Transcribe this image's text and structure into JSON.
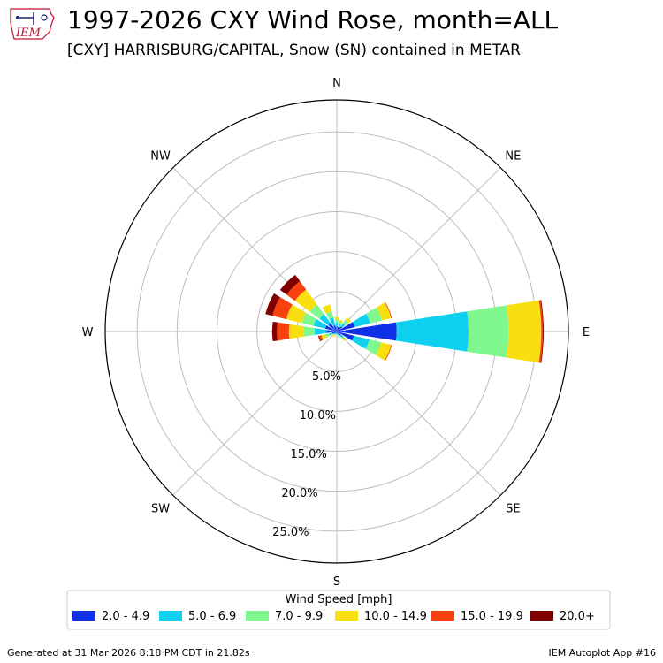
{
  "header": {
    "title": "1997-2026 CXY Wind Rose, month=ALL",
    "subtitle": "[CXY] HARRISBURG/CAPITAL, Snow (SN) contained in METAR",
    "logo_text": "IEM"
  },
  "footer": {
    "generated": "Generated at 31 Mar 2026 8:18 PM CDT in 21.82s",
    "app": "IEM Autoplot App #16"
  },
  "chart_data": {
    "type": "wind-rose",
    "directions": [
      "N",
      "NNE",
      "NE",
      "ENE",
      "E",
      "ESE",
      "SE",
      "SSE",
      "S",
      "SSW",
      "SW",
      "WSW",
      "W",
      "WNW",
      "NW",
      "NNW"
    ],
    "direction_angles": [
      0,
      22.5,
      45,
      67.5,
      90,
      112.5,
      135,
      157.5,
      180,
      202.5,
      225,
      247.5,
      270,
      292.5,
      315,
      337.5
    ],
    "compass_labels": [
      {
        "label": "N",
        "angle": 0
      },
      {
        "label": "NE",
        "angle": 45
      },
      {
        "label": "E",
        "angle": 90
      },
      {
        "label": "SE",
        "angle": 135
      },
      {
        "label": "S",
        "angle": 180
      },
      {
        "label": "SW",
        "angle": 225
      },
      {
        "label": "W",
        "angle": 270
      },
      {
        "label": "NW",
        "angle": 315
      }
    ],
    "radial_ticks": [
      5,
      10,
      15,
      20,
      25
    ],
    "radial_tick_labels": [
      "5.0%",
      "10.0%",
      "15.0%",
      "20.0%",
      "25.0%"
    ],
    "rmax": 29,
    "legend": {
      "title": "Wind Speed [mph]",
      "placement": "bottom",
      "items": [
        {
          "label": "2.0 - 4.9",
          "color": "#1030e8"
        },
        {
          "label": "5.0 - 6.9",
          "color": "#10d0f0"
        },
        {
          "label": "7.0 - 9.9",
          "color": "#80f890"
        },
        {
          "label": "10.0 - 14.9",
          "color": "#f8e010"
        },
        {
          "label": "15.0 - 19.9",
          "color": "#f84010"
        },
        {
          "label": "20.0+",
          "color": "#800000"
        }
      ]
    },
    "series_cumulative": [
      {
        "dir": "N",
        "values": [
          0.6,
          1.1,
          1.5,
          1.8,
          1.8,
          1.8
        ]
      },
      {
        "dir": "NNE",
        "values": [
          0.6,
          1.0,
          1.3,
          1.5,
          1.5,
          1.5
        ]
      },
      {
        "dir": "NE",
        "values": [
          0.8,
          1.3,
          1.8,
          2.2,
          2.2,
          2.2
        ]
      },
      {
        "dir": "ENE",
        "values": [
          2.3,
          4.3,
          5.8,
          7.0,
          7.1,
          7.1
        ]
      },
      {
        "dir": "E",
        "values": [
          7.5,
          16.5,
          21.5,
          25.6,
          25.8,
          25.9
        ]
      },
      {
        "dir": "ESE",
        "values": [
          2.2,
          4.2,
          5.7,
          7.0,
          7.1,
          7.1
        ]
      },
      {
        "dir": "SE",
        "values": [
          0.6,
          1.0,
          1.3,
          1.5,
          1.5,
          1.5
        ]
      },
      {
        "dir": "SSE",
        "values": [
          0.3,
          0.5,
          0.6,
          0.7,
          0.7,
          0.7
        ]
      },
      {
        "dir": "S",
        "values": [
          0.2,
          0.4,
          0.5,
          0.5,
          0.5,
          0.5
        ]
      },
      {
        "dir": "SSW",
        "values": [
          0.2,
          0.4,
          0.5,
          0.6,
          0.6,
          0.6
        ]
      },
      {
        "dir": "SW",
        "values": [
          0.3,
          0.5,
          0.6,
          0.8,
          0.8,
          0.8
        ]
      },
      {
        "dir": "WSW",
        "values": [
          0.6,
          1.0,
          1.5,
          2.0,
          2.3,
          2.4
        ]
      },
      {
        "dir": "W",
        "values": [
          1.3,
          2.8,
          4.2,
          6.0,
          7.5,
          8.1
        ]
      },
      {
        "dir": "WNW",
        "values": [
          1.5,
          3.0,
          4.5,
          6.5,
          8.3,
          9.2
        ]
      },
      {
        "dir": "NW",
        "values": [
          1.3,
          2.7,
          4.2,
          6.5,
          7.8,
          8.8
        ]
      },
      {
        "dir": "NNW",
        "values": [
          0.8,
          1.8,
          2.6,
          3.5,
          3.5,
          3.5
        ]
      }
    ]
  }
}
